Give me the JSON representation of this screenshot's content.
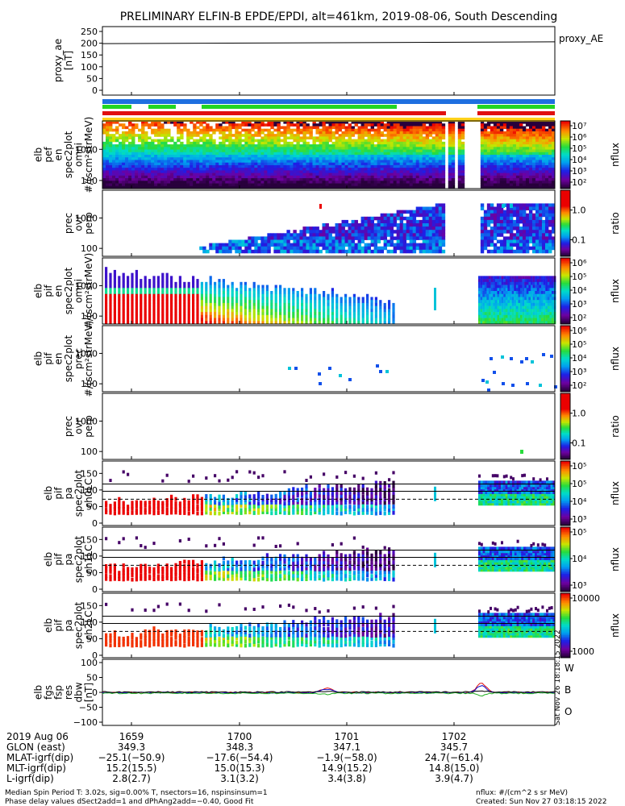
{
  "title": "PRELIMINARY ELFIN-B EPDE/EPDI, alt=461km, 2019-08-06, South Descending",
  "colors": {
    "bar_blue": "#1e6fe0",
    "bar_green": "#22d622",
    "bar_red": "#e01010",
    "bar_yellow": "#ffd21a",
    "trace_black": "#000000",
    "trace_red": "#e01010",
    "trace_blue": "#1010d0",
    "trace_green": "#22b022"
  },
  "panels": {
    "proxy_ae": {
      "ylabel": [
        "proxy_ae",
        "[nT]"
      ],
      "ticks": [
        "250",
        "200",
        "150",
        "100",
        "50",
        "0"
      ],
      "right_label": "proxy_AE"
    },
    "p1": {
      "ylabel": [
        "elb",
        "pef",
        "en",
        "spec2plot",
        "omni",
        "#/(scm²strMeV)"
      ],
      "ticks": [
        "1000",
        "100"
      ],
      "cbar_ticks": [
        "10⁷",
        "10⁶",
        "10⁵",
        "10⁴",
        "10³",
        "10²"
      ],
      "cbar_label": "nflux"
    },
    "p2": {
      "ylabel": [
        "prec",
        "ovr",
        "perp"
      ],
      "ticks": [
        "1000",
        "100"
      ],
      "cbar_ticks": [
        "1.0",
        "0.1"
      ],
      "cbar_label": "ratio"
    },
    "p3": {
      "ylabel": [
        "elb",
        "pif",
        "en",
        "spec2plot",
        "omni",
        "#/(scm²strMeV)"
      ],
      "ticks": [
        "1000",
        "100"
      ],
      "cbar_ticks": [
        "10⁶",
        "10⁵",
        "10⁴",
        "10³",
        "10²"
      ],
      "cbar_label": "nflux"
    },
    "p4": {
      "ylabel": [
        "elb",
        "pif",
        "en",
        "spec2plot",
        "prec",
        "#/(scm²strMeV)"
      ],
      "ticks": [
        "1000",
        "100"
      ],
      "cbar_ticks": [
        "10⁶",
        "10⁵",
        "10⁴",
        "10³",
        "10²"
      ],
      "cbar_label": "nflux"
    },
    "p5": {
      "ylabel": [
        "prec",
        "ovr",
        "perp"
      ],
      "ticks": [
        "1000",
        "100"
      ],
      "cbar_ticks": [
        "1.0",
        "0.1"
      ],
      "cbar_label": "ratio"
    },
    "p6": {
      "ylabel": [
        "elb",
        "pif",
        "pa",
        "spec2plot",
        "ch0LC"
      ],
      "ticks": [
        "150",
        "100",
        "50",
        "0"
      ],
      "cbar_ticks": [
        "10⁵",
        "10⁵",
        "10⁴",
        "10³"
      ],
      "cbar_label": "nflux"
    },
    "p7": {
      "ylabel": [
        "elb",
        "pif",
        "pa",
        "spec2plot",
        "ch1LC"
      ],
      "ticks": [
        "150",
        "100",
        "50",
        "0"
      ],
      "cbar_ticks": [
        "10⁵",
        "10⁴",
        "10³"
      ],
      "cbar_label": "nflux"
    },
    "p8": {
      "ylabel": [
        "elb",
        "pif",
        "pa",
        "spec2plot",
        "ch2LC"
      ],
      "ticks": [
        "150",
        "100",
        "50",
        "0"
      ],
      "cbar_ticks": [
        "10000",
        "1000"
      ],
      "cbar_label": "nflux"
    },
    "p9": {
      "ylabel": [
        "elb",
        "fgs",
        "fsp",
        "res",
        "dbw",
        "[nT]"
      ],
      "ticks": [
        "100",
        "50",
        "0",
        "−50",
        "−100"
      ],
      "legend": [
        "W",
        "B",
        "O"
      ]
    }
  },
  "timestamp_side": "Sat Nov 26 18:18:15 2022",
  "xaxis": {
    "rows": [
      {
        "label": "2019 Aug 06",
        "values": [
          "1659",
          "1700",
          "1701",
          "1702"
        ]
      },
      {
        "label": "GLON (east)",
        "values": [
          "349.3",
          "348.3",
          "347.1",
          "345.7"
        ]
      },
      {
        "label": "MLAT-igrf(dip)",
        "values": [
          "−25.1(−50.9)",
          "−17.6(−54.4)",
          "−1.9(−58.0)",
          "24.7(−61.4)"
        ]
      },
      {
        "label": "MLT-igrf(dip)",
        "values": [
          "15.2(15.5)",
          "15.0(15.3)",
          "14.9(15.2)",
          "14.8(15.0)"
        ]
      },
      {
        "label": "L-igrf(dip)",
        "values": [
          "2.8(2.7)",
          "3.1(3.2)",
          "3.4(3.8)",
          "3.9(4.7)"
        ]
      }
    ]
  },
  "footer": {
    "left1": "Median Spin Period T: 3.02s, sig=0.00% T, nsectors=16, nspinsinsum=1",
    "left2": "Phase delay values dSect2add=1 and dPhAng2add=−0.40, Good Fit",
    "right1": "nflux: #/(cm^2 s sr MeV)",
    "right2": "Created: Sun Nov 27 03:18:15 2022"
  },
  "chart_data": {
    "type": "heatmap",
    "title": "PRELIMINARY ELFIN-B EPDE/EPDI, alt=461km, 2019-08-06, South Descending",
    "proxy_ae": {
      "type": "line",
      "y_range": [
        0,
        250
      ],
      "approx_value": 200,
      "legend": "proxy_AE"
    },
    "x_tick_labels": [
      "1659",
      "1700",
      "1701",
      "1702"
    ],
    "energy_axis_ticks": [
      1000,
      100
    ],
    "pitch_angle_axis_ticks": [
      150,
      100,
      50,
      0
    ],
    "field_residuals_range": [
      -100,
      100
    ],
    "field_residual_series": [
      "W",
      "B",
      "O"
    ]
  }
}
